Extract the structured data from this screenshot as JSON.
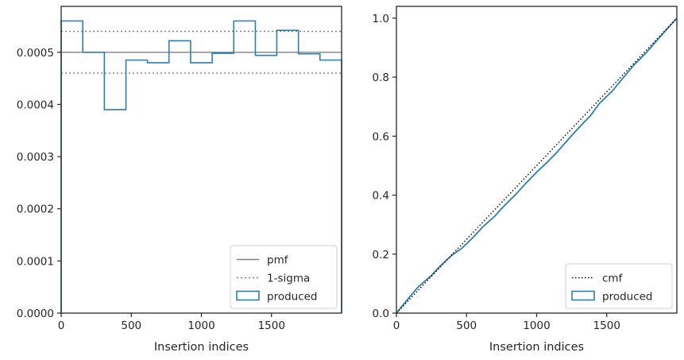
{
  "colors": {
    "produced": "#2a7fb0",
    "pmf": "#808080",
    "sigma": "#808080",
    "cmf": "#000000",
    "axes": "#262626"
  },
  "chart_data": [
    {
      "type": "line",
      "xlabel": "Insertion indices",
      "ylabel": "",
      "xlim": [
        0,
        2000
      ],
      "ylim": [
        0,
        0.000588
      ],
      "x_ticks": [
        0,
        500,
        1000,
        1500
      ],
      "x_tick_labels": [
        "0",
        "500",
        "1000",
        "1500"
      ],
      "y_ticks": [
        0,
        0.0001,
        0.0002,
        0.0003,
        0.0004,
        0.0005
      ],
      "y_tick_labels": [
        "0.0000",
        "0.0001",
        "0.0002",
        "0.0003",
        "0.0004",
        "0.0005"
      ],
      "grid": false,
      "legend": {
        "position": "bottom-right",
        "entries": [
          "pmf",
          "1-sigma",
          "produced"
        ]
      },
      "pmf": 0.0005,
      "sigma_band": [
        0.00046,
        0.00054
      ],
      "series": [
        {
          "name": "produced",
          "style": "step-histogram",
          "bin_edges": [
            0,
            154,
            308,
            462,
            615,
            769,
            923,
            1077,
            1231,
            1385,
            1538,
            1692,
            1846,
            2000
          ],
          "values": [
            0.00056,
            0.0005,
            0.00039,
            0.000485,
            0.00048,
            0.000522,
            0.00048,
            0.000498,
            0.00056,
            0.000494,
            0.000542,
            0.000497,
            0.000485
          ]
        }
      ]
    },
    {
      "type": "line",
      "xlabel": "Insertion indices",
      "ylabel": "",
      "xlim": [
        0,
        2000
      ],
      "ylim": [
        0,
        1.04
      ],
      "x_ticks": [
        0,
        500,
        1000,
        1500
      ],
      "x_tick_labels": [
        "0",
        "500",
        "1000",
        "1500"
      ],
      "y_ticks": [
        0,
        0.2,
        0.4,
        0.6,
        0.8,
        1.0
      ],
      "y_tick_labels": [
        "0.0",
        "0.2",
        "0.4",
        "0.6",
        "0.8",
        "1.0"
      ],
      "grid": false,
      "legend": {
        "position": "bottom-right",
        "entries": [
          "cmf",
          "produced"
        ]
      },
      "series": [
        {
          "name": "cmf",
          "style": "dotted",
          "x": [
            0,
            2000
          ],
          "y": [
            0,
            1.0
          ]
        },
        {
          "name": "produced",
          "style": "solid",
          "x": [
            0,
            100,
            154,
            250,
            308,
            400,
            462,
            550,
            615,
            700,
            769,
            850,
            923,
            1000,
            1077,
            1150,
            1231,
            1300,
            1385,
            1450,
            1538,
            1600,
            1692,
            1780,
            1846,
            1920,
            2000
          ],
          "y": [
            0,
            0.058,
            0.088,
            0.128,
            0.158,
            0.198,
            0.218,
            0.258,
            0.292,
            0.328,
            0.364,
            0.402,
            0.44,
            0.478,
            0.512,
            0.548,
            0.592,
            0.628,
            0.67,
            0.712,
            0.752,
            0.788,
            0.84,
            0.882,
            0.918,
            0.958,
            1.0
          ]
        }
      ]
    }
  ]
}
